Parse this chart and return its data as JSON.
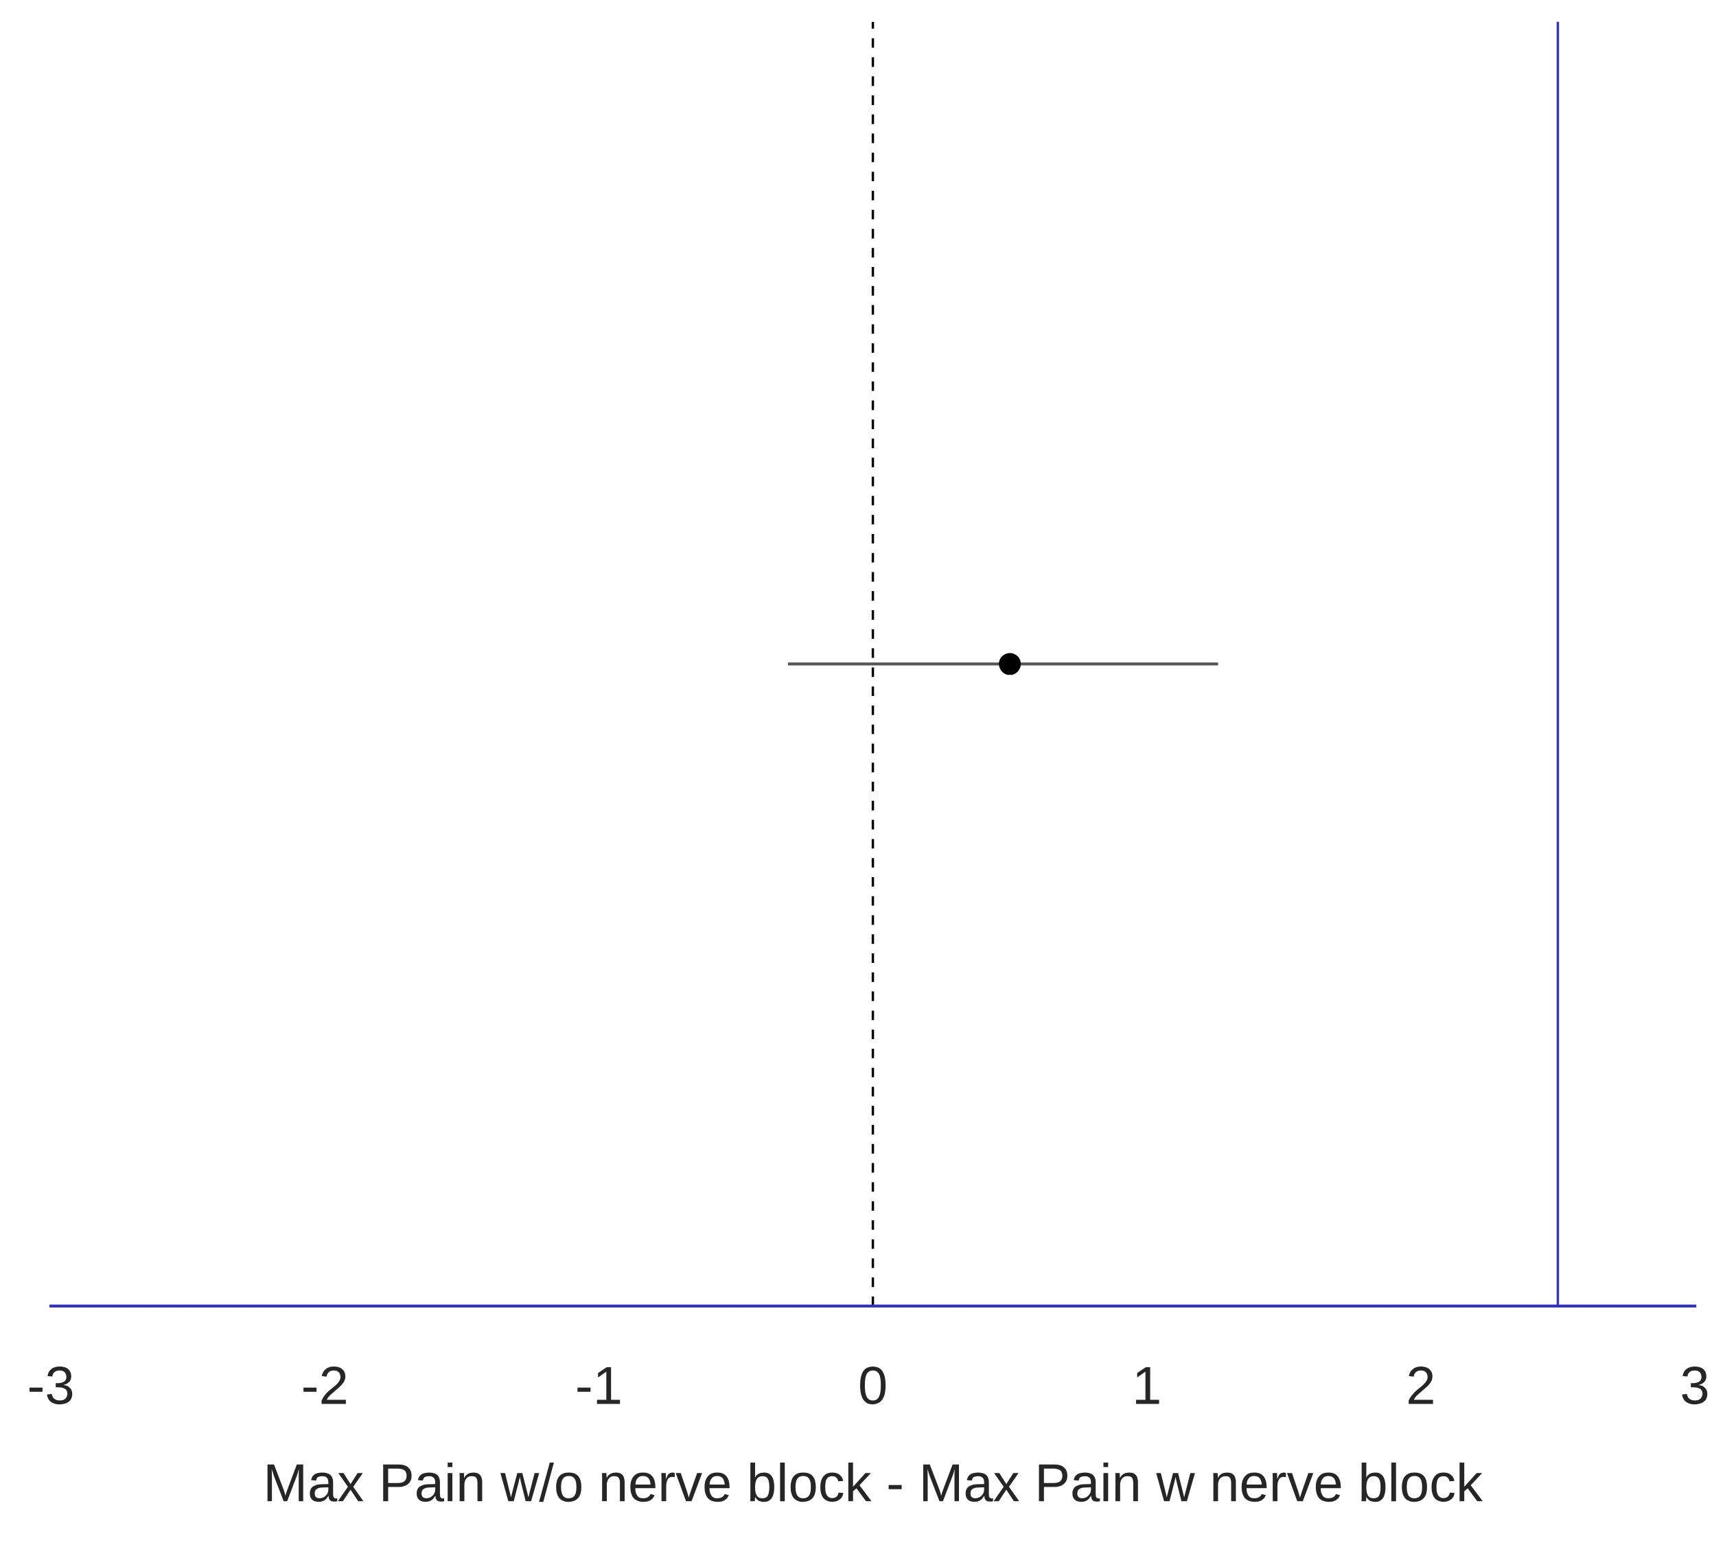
{
  "chart_data": {
    "type": "scatter",
    "orientation": "horizontal",
    "xlabel": "Max Pain w/o nerve block - Max Pain w nerve block",
    "categories": [
      null
    ],
    "values": [
      0.5
    ],
    "errors": [
      [
        -0.31,
        1.26
      ]
    ],
    "color": "#000000",
    "marker": "circle",
    "xlim": [
      -3,
      3
    ],
    "xticks": [
      -3,
      -2,
      -1,
      0,
      1,
      2,
      3
    ],
    "tick_labels": "x",
    "grid": false,
    "legend": false,
    "ref_lines": [
      {
        "axis": "x",
        "value": 0,
        "color": "#000000",
        "line_style": "dashed"
      },
      {
        "axis": "x",
        "value": 2.5,
        "color": "#3333bb",
        "line_style": "solid"
      }
    ]
  }
}
